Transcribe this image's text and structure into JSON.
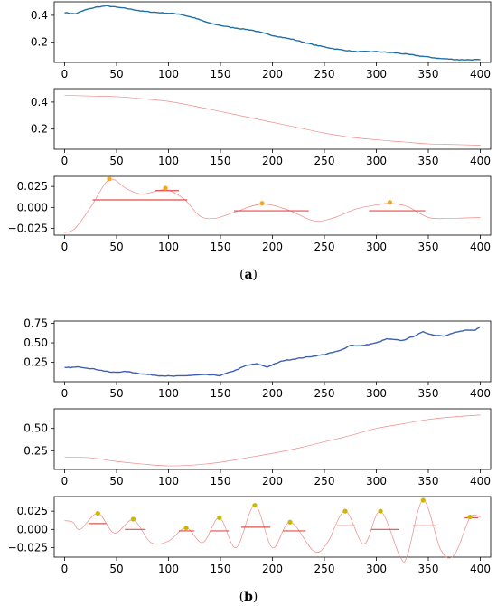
{
  "figure": {
    "label_a": "(a)",
    "label_a_letter": "a",
    "label_b": "(b)",
    "label_b_letter": "b"
  },
  "chart_data": [
    {
      "panel": "a",
      "row": 1,
      "type": "line",
      "title": "",
      "xlabel": "",
      "ylabel": "",
      "xlim": [
        -10,
        410
      ],
      "ylim": [
        0.05,
        0.5
      ],
      "xticks": [
        0,
        50,
        100,
        150,
        200,
        250,
        300,
        350,
        400
      ],
      "yticks": [
        0.2,
        0.4
      ],
      "grid": false,
      "noisy": true,
      "color": "#1f6fa5",
      "series": [
        {
          "x": [
            0,
            10,
            20,
            30,
            40,
            50,
            60,
            75,
            90,
            110,
            125,
            140,
            160,
            180,
            200,
            220,
            240,
            260,
            280,
            300,
            320,
            340,
            360,
            380,
            400
          ],
          "y": [
            0.42,
            0.41,
            0.44,
            0.46,
            0.47,
            0.46,
            0.45,
            0.43,
            0.42,
            0.41,
            0.38,
            0.34,
            0.31,
            0.29,
            0.25,
            0.22,
            0.18,
            0.15,
            0.13,
            0.13,
            0.12,
            0.1,
            0.08,
            0.07,
            0.07
          ]
        }
      ]
    },
    {
      "panel": "a",
      "row": 2,
      "type": "line",
      "title": "",
      "xlabel": "",
      "ylabel": "",
      "xlim": [
        -10,
        410
      ],
      "ylim": [
        0.05,
        0.5
      ],
      "xticks": [
        0,
        50,
        100,
        150,
        200,
        250,
        300,
        350,
        400
      ],
      "yticks": [
        0.2,
        0.4
      ],
      "grid": false,
      "noisy": false,
      "color": "#ef8a8a",
      "series": [
        {
          "x": [
            0,
            25,
            50,
            75,
            100,
            125,
            150,
            175,
            200,
            225,
            250,
            275,
            300,
            325,
            350,
            375,
            400
          ],
          "y": [
            0.45,
            0.445,
            0.44,
            0.425,
            0.405,
            0.37,
            0.33,
            0.29,
            0.25,
            0.21,
            0.17,
            0.14,
            0.12,
            0.105,
            0.09,
            0.085,
            0.08
          ]
        }
      ]
    },
    {
      "panel": "a",
      "row": 3,
      "type": "line",
      "title": "",
      "xlabel": "",
      "ylabel": "",
      "xlim": [
        -10,
        410
      ],
      "ylim": [
        -0.033,
        0.037
      ],
      "xticks": [
        0,
        50,
        100,
        150,
        200,
        250,
        300,
        350,
        400
      ],
      "yticks": [
        -0.025,
        0.0,
        0.025
      ],
      "ytick_labels": [
        "−0.025",
        "0.000",
        "0.025"
      ],
      "grid": false,
      "noisy": false,
      "color": "#ef8a8a",
      "series": [
        {
          "x": [
            0,
            10,
            25,
            43,
            60,
            75,
            97,
            115,
            130,
            145,
            165,
            190,
            215,
            240,
            260,
            280,
            300,
            313,
            330,
            350,
            370,
            400
          ],
          "y": [
            -0.03,
            -0.025,
            0.0,
            0.033,
            0.022,
            0.016,
            0.021,
            0.01,
            -0.01,
            -0.013,
            -0.005,
            0.004,
            -0.003,
            -0.016,
            -0.012,
            -0.002,
            0.003,
            0.005,
            0.001,
            -0.012,
            -0.013,
            -0.012
          ]
        }
      ],
      "peaks": {
        "x": [
          43,
          97,
          190,
          313
        ],
        "y": [
          0.034,
          0.023,
          0.005,
          0.006
        ],
        "color": "#f5a623"
      },
      "widths": {
        "x0": [
          27,
          87,
          163,
          293
        ],
        "x1": [
          118,
          110,
          235,
          347
        ],
        "y": [
          0.009,
          0.02,
          -0.004,
          -0.004
        ],
        "color": "#e84a4a"
      }
    },
    {
      "panel": "b",
      "row": 1,
      "type": "line",
      "title": "",
      "xlabel": "",
      "ylabel": "",
      "xlim": [
        -10,
        410
      ],
      "ylim": [
        0.0,
        0.78
      ],
      "xticks": [
        0,
        50,
        100,
        150,
        200,
        250,
        300,
        350,
        400
      ],
      "yticks": [
        0.25,
        0.5,
        0.75
      ],
      "ytick_labels": [
        "0.25",
        "0.50",
        "0.75"
      ],
      "grid": false,
      "noisy": true,
      "color": "#3b5fb5",
      "series": [
        {
          "x": [
            0,
            15,
            30,
            45,
            60,
            75,
            90,
            105,
            120,
            135,
            150,
            165,
            175,
            185,
            195,
            210,
            230,
            250,
            265,
            275,
            285,
            300,
            310,
            325,
            335,
            345,
            355,
            365,
            375,
            385,
            395,
            400
          ],
          "y": [
            0.18,
            0.19,
            0.16,
            0.12,
            0.13,
            0.1,
            0.08,
            0.07,
            0.08,
            0.09,
            0.08,
            0.15,
            0.21,
            0.23,
            0.19,
            0.27,
            0.31,
            0.35,
            0.4,
            0.47,
            0.46,
            0.5,
            0.55,
            0.53,
            0.58,
            0.64,
            0.6,
            0.59,
            0.63,
            0.66,
            0.66,
            0.71
          ]
        }
      ]
    },
    {
      "panel": "b",
      "row": 2,
      "type": "line",
      "title": "",
      "xlabel": "",
      "ylabel": "",
      "xlim": [
        -10,
        410
      ],
      "ylim": [
        0.04,
        0.72
      ],
      "xticks": [
        0,
        50,
        100,
        150,
        200,
        250,
        300,
        350,
        400
      ],
      "yticks": [
        0.25,
        0.5
      ],
      "ytick_labels": [
        "0.25",
        "0.50"
      ],
      "grid": false,
      "noisy": false,
      "color": "#ef8a8a",
      "series": [
        {
          "x": [
            0,
            25,
            50,
            75,
            100,
            125,
            150,
            175,
            200,
            225,
            250,
            275,
            300,
            325,
            350,
            375,
            400
          ],
          "y": [
            0.18,
            0.17,
            0.13,
            0.1,
            0.08,
            0.09,
            0.12,
            0.17,
            0.22,
            0.28,
            0.35,
            0.42,
            0.5,
            0.55,
            0.6,
            0.63,
            0.65
          ]
        }
      ]
    },
    {
      "panel": "b",
      "row": 3,
      "type": "line",
      "title": "",
      "xlabel": "",
      "ylabel": "",
      "xlim": [
        -10,
        410
      ],
      "ylim": [
        -0.038,
        0.045
      ],
      "xticks": [
        0,
        50,
        100,
        150,
        200,
        250,
        300,
        350,
        400
      ],
      "yticks": [
        -0.025,
        0.0,
        0.025
      ],
      "ytick_labels": [
        "−0.025",
        "0.000",
        "0.025"
      ],
      "grid": false,
      "noisy": false,
      "color": "#ef8a8a",
      "series": [
        {
          "x": [
            0,
            8,
            15,
            32,
            48,
            66,
            83,
            100,
            117,
            133,
            149,
            165,
            183,
            200,
            217,
            240,
            253,
            270,
            288,
            304,
            323,
            330,
            345,
            362,
            375,
            390,
            400
          ],
          "y": [
            0.012,
            0.01,
            0.0,
            0.022,
            -0.005,
            0.013,
            -0.018,
            -0.016,
            0.002,
            -0.018,
            0.016,
            -0.025,
            0.033,
            -0.025,
            0.01,
            -0.03,
            -0.018,
            0.025,
            -0.02,
            0.025,
            -0.038,
            -0.035,
            0.04,
            -0.028,
            -0.035,
            0.016,
            0.017
          ]
        }
      ],
      "peaks": {
        "x": [
          32,
          66,
          117,
          149,
          183,
          217,
          270,
          304,
          345,
          390
        ],
        "y": [
          0.022,
          0.014,
          0.002,
          0.016,
          0.033,
          0.01,
          0.025,
          0.025,
          0.04,
          0.017
        ],
        "color": "#c9b800"
      },
      "widths": {
        "x0": [
          23,
          58,
          110,
          140,
          170,
          210,
          262,
          295,
          335,
          385
        ],
        "x1": [
          40,
          78,
          125,
          158,
          198,
          232,
          280,
          322,
          358,
          398
        ],
        "y": [
          0.008,
          0.0,
          -0.002,
          -0.002,
          0.003,
          -0.002,
          0.005,
          0.0,
          0.005,
          0.016
        ],
        "color": "#d9534f"
      }
    }
  ]
}
